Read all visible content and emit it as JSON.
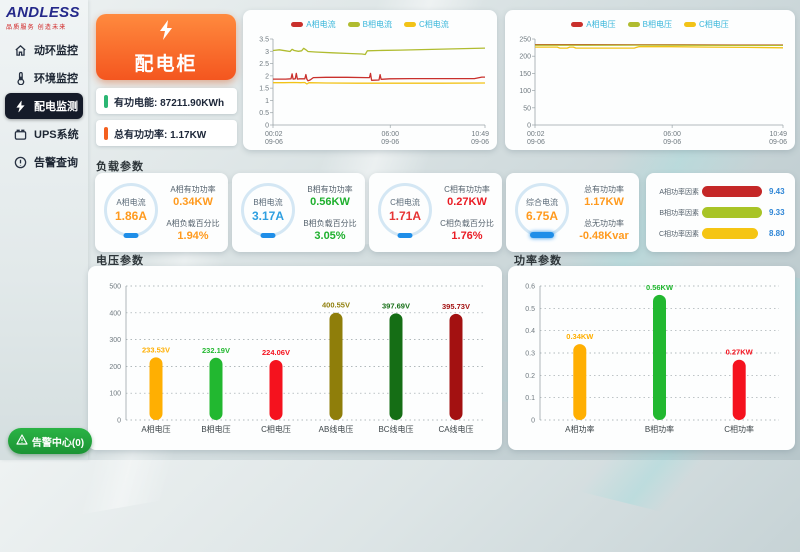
{
  "brand": {
    "name": "ANDLESS",
    "tagline": "品质服务 创造未来"
  },
  "sidebar": {
    "items": [
      {
        "label": "动环监控",
        "icon": "home-icon",
        "active": false
      },
      {
        "label": "环境监控",
        "icon": "thermometer-icon",
        "active": false
      },
      {
        "label": "配电监测",
        "icon": "lightning-icon",
        "active": true
      },
      {
        "label": "UPS系统",
        "icon": "battery-icon",
        "active": false
      },
      {
        "label": "告警查询",
        "icon": "alert-circle-icon",
        "active": false
      }
    ],
    "alarm_center_label": "告警中心(0)"
  },
  "header": {
    "cabinet_button": "配电柜",
    "energy_label": "有功电能:",
    "energy_value": "87211.90KWh",
    "energy_pill_color": "#2bb673",
    "total_power_label": "总有功功率:",
    "total_power_value": "1.17KW",
    "total_power_pill_color": "#f4601f"
  },
  "sections": {
    "load": "负载参数",
    "voltage": "电压参数",
    "power": "功率参数"
  },
  "load_cards": [
    {
      "gauge_label": "A相电流",
      "gauge_value": "1.86A",
      "gauge_color": "#ff9a1e",
      "row1_label": "A相有功功率",
      "row1_value": "0.34KW",
      "row1_color": "#ff9a1e",
      "row2_label": "A相负载百分比",
      "row2_value": "1.94%",
      "row2_color": "#ff9a1e"
    },
    {
      "gauge_label": "B相电流",
      "gauge_value": "3.17A",
      "gauge_color": "#2e9fe0",
      "row1_label": "B相有功功率",
      "row1_value": "0.56KW",
      "row1_color": "#1fb02e",
      "row2_label": "B相负载百分比",
      "row2_value": "3.05%",
      "row2_color": "#1fb02e"
    },
    {
      "gauge_label": "C相电流",
      "gauge_value": "1.71A",
      "gauge_color": "#e63333",
      "row1_label": "C相有功功率",
      "row1_value": "0.27KW",
      "row1_color": "#ea1c24",
      "row2_label": "C相负载百分比",
      "row2_value": "1.76%",
      "row2_color": "#ea1c24"
    },
    {
      "gauge_label": "综合电流",
      "gauge_value": "6.75A",
      "gauge_color": "#ff9a1e",
      "row1_label": "总有功功率",
      "row1_value": "1.17KW",
      "row1_color": "#ff9a1e",
      "row2_label": "总无功功率",
      "row2_value": "-0.48Kvar",
      "row2_color": "#ff9a1e"
    }
  ],
  "chart_data": [
    {
      "id": "phase-current-trend",
      "type": "line",
      "legend": [
        "A相电流",
        "B相电流",
        "C相电流"
      ],
      "colors": [
        "#c9302c",
        "#b0bc30",
        "#f2c318"
      ],
      "ylim": [
        0,
        3.5
      ],
      "y_step": 0.5,
      "grid": false,
      "legend_position": "top",
      "x_ticks": [
        {
          "time": "00:02",
          "date": "09-06",
          "pos": 0
        },
        {
          "time": "06:00",
          "date": "09-06",
          "pos": 0.553
        },
        {
          "time": "10:49",
          "date": "09-06",
          "pos": 1
        }
      ],
      "series": [
        {
          "name": "A相电流",
          "points": [
            [
              0,
              1.87
            ],
            [
              0.06,
              1.87
            ],
            [
              0.085,
              1.88
            ],
            [
              0.09,
              2.08
            ],
            [
              0.095,
              1.87
            ],
            [
              0.105,
              1.88
            ],
            [
              0.11,
              2.1
            ],
            [
              0.115,
              1.87
            ],
            [
              0.125,
              1.88
            ],
            [
              0.15,
              1.88
            ],
            [
              0.155,
              2.05
            ],
            [
              0.16,
              1.86
            ],
            [
              0.165,
              1.8
            ],
            [
              0.175,
              1.83
            ],
            [
              0.19,
              1.93
            ],
            [
              0.25,
              1.94
            ],
            [
              0.35,
              1.94
            ],
            [
              0.44,
              1.93
            ],
            [
              0.455,
              1.93
            ],
            [
              0.46,
              2.1
            ],
            [
              0.465,
              1.82
            ],
            [
              0.5,
              1.83
            ],
            [
              0.505,
              2.05
            ],
            [
              0.51,
              1.86
            ],
            [
              0.55,
              1.88
            ],
            [
              0.65,
              1.89
            ],
            [
              0.8,
              1.89
            ],
            [
              0.95,
              1.89
            ],
            [
              0.985,
              1.95
            ],
            [
              1,
              1.95
            ]
          ]
        },
        {
          "name": "B相电流",
          "points": [
            [
              0,
              3.03
            ],
            [
              0.03,
              3.06
            ],
            [
              0.06,
              3.02
            ],
            [
              0.08,
              2.99
            ],
            [
              0.09,
              3.08
            ],
            [
              0.1,
              3.03
            ],
            [
              0.12,
              3.0
            ],
            [
              0.135,
              3.02
            ],
            [
              0.145,
              3.12
            ],
            [
              0.155,
              3.06
            ],
            [
              0.165,
              2.99
            ],
            [
              0.2,
              2.97
            ],
            [
              0.28,
              2.94
            ],
            [
              0.36,
              2.91
            ],
            [
              0.42,
              2.89
            ],
            [
              0.435,
              2.87
            ],
            [
              0.445,
              3.02
            ],
            [
              0.5,
              3.03
            ],
            [
              0.6,
              3.05
            ],
            [
              0.7,
              3.07
            ],
            [
              0.8,
              3.09
            ],
            [
              0.9,
              3.11
            ],
            [
              1,
              3.13
            ]
          ]
        },
        {
          "name": "C相电流",
          "points": [
            [
              0,
              1.72
            ],
            [
              0.05,
              1.72
            ],
            [
              0.1,
              1.73
            ],
            [
              0.13,
              1.72
            ],
            [
              0.15,
              1.73
            ],
            [
              0.16,
              1.67
            ],
            [
              0.17,
              1.72
            ],
            [
              0.25,
              1.71
            ],
            [
              0.4,
              1.7
            ],
            [
              0.6,
              1.7
            ],
            [
              0.8,
              1.7
            ],
            [
              1,
              1.71
            ]
          ]
        }
      ]
    },
    {
      "id": "phase-voltage-trend",
      "type": "line",
      "legend": [
        "A相电压",
        "B相电压",
        "C相电压"
      ],
      "colors": [
        "#c9302c",
        "#b0bc30",
        "#f2c318"
      ],
      "ylim": [
        0,
        250
      ],
      "y_step": 50,
      "grid": false,
      "legend_position": "top",
      "x_ticks": [
        {
          "time": "00:02",
          "date": "09-06",
          "pos": 0
        },
        {
          "time": "06:00",
          "date": "09-06",
          "pos": 0.553
        },
        {
          "time": "10:49",
          "date": "09-06",
          "pos": 1
        }
      ],
      "series": [
        {
          "name": "A相电压",
          "points": [
            [
              0,
              233.5
            ],
            [
              0.2,
              233.5
            ],
            [
              0.4,
              233
            ],
            [
              0.6,
              233
            ],
            [
              0.8,
              232.5
            ],
            [
              1,
              232.5
            ]
          ]
        },
        {
          "name": "B相电压",
          "points": [
            [
              0,
              232
            ],
            [
              0.2,
              232
            ],
            [
              0.4,
              232.3
            ],
            [
              0.6,
              232
            ],
            [
              0.8,
              231.5
            ],
            [
              1,
              231.5
            ]
          ]
        },
        {
          "name": "C相电压",
          "points": [
            [
              0,
              226.5
            ],
            [
              0.09,
              226.5
            ],
            [
              0.1,
              223.5
            ],
            [
              0.13,
              223.5
            ],
            [
              0.14,
              226.5
            ],
            [
              0.155,
              226.5
            ],
            [
              0.165,
              223.5
            ],
            [
              0.4,
              223.5
            ],
            [
              0.42,
              228
            ],
            [
              0.55,
              227.5
            ],
            [
              0.7,
              226.5
            ],
            [
              0.85,
              225.5
            ],
            [
              1,
              224.5
            ]
          ]
        }
      ]
    },
    {
      "id": "voltage-bars",
      "type": "bar",
      "title": "电压参数",
      "categories": [
        "A相电压",
        "B相电压",
        "C相电压",
        "AB线电压",
        "BC线电压",
        "CA线电压"
      ],
      "values": [
        233.53,
        232.19,
        224.06,
        400.55,
        397.69,
        395.73
      ],
      "value_labels": [
        "233.53V",
        "232.19V",
        "224.06V",
        "400.55V",
        "397.69V",
        "395.73V"
      ],
      "colors": [
        "#ffaf02",
        "#22b830",
        "#f5121e",
        "#8f7e0a",
        "#156e15",
        "#a31111"
      ],
      "ylim": [
        0,
        500
      ],
      "y_step": 100,
      "grid": "dotted",
      "xlabel": "",
      "ylabel": ""
    },
    {
      "id": "power-bars",
      "type": "bar",
      "title": "功率参数",
      "categories": [
        "A相功率",
        "B相功率",
        "C相功率"
      ],
      "values": [
        0.34,
        0.56,
        0.27
      ],
      "value_labels": [
        "0.34KW",
        "0.56KW",
        "0.27KW"
      ],
      "colors": [
        "#ffaf02",
        "#22b830",
        "#f5121e"
      ],
      "ylim": [
        0,
        0.6
      ],
      "y_step": 0.1,
      "grid": "dotted",
      "xlabel": "",
      "ylabel": ""
    },
    {
      "id": "power-factor-bars",
      "type": "bar",
      "orientation": "horizontal",
      "categories": [
        "A相功率因素",
        "B相功率因素",
        "C相功率因素"
      ],
      "values": [
        9.43,
        9.33,
        8.8
      ],
      "value_labels": [
        "9.43",
        "9.33",
        "8.80"
      ],
      "colors": [
        "#c42727",
        "#a8c426",
        "#f5c513"
      ],
      "xlim": [
        0,
        10
      ]
    }
  ]
}
